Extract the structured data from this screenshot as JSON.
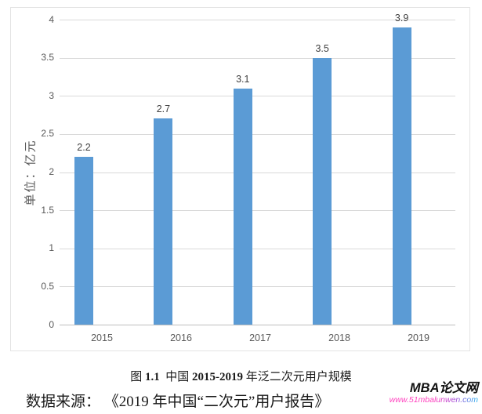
{
  "chart_data": {
    "type": "bar",
    "categories": [
      "2015",
      "2016",
      "2017",
      "2018",
      "2019"
    ],
    "values": [
      2.2,
      2.7,
      3.1,
      3.5,
      3.9
    ],
    "data_labels": [
      "2.2",
      "2.7",
      "3.1",
      "3.5",
      "3.9"
    ],
    "ylabel": "单位：亿元",
    "xlabel": "",
    "ylim": [
      0,
      4
    ],
    "yticks": [
      {
        "value": 4,
        "label": "4"
      },
      {
        "value": 3.5,
        "label": "3.5"
      },
      {
        "value": 3,
        "label": "3"
      },
      {
        "value": 2.5,
        "label": "2.5"
      },
      {
        "value": 2,
        "label": "2"
      },
      {
        "value": 1.5,
        "label": "1.5"
      },
      {
        "value": 1,
        "label": "1"
      },
      {
        "value": 0.5,
        "label": "0.5"
      },
      {
        "value": 0,
        "label": "0"
      }
    ],
    "grid": "horizontal",
    "legend_position": "none",
    "colors": {
      "bar": "#5B9BD5",
      "gridline": "#D9D9D9",
      "axis_line": "#BFBFBF",
      "tick_text": "#595959",
      "data_label_text": "#404040",
      "frame_border": "#E3E3E3"
    }
  },
  "caption": {
    "figure_word": "图 ",
    "figure_number": "1.1",
    "text_mid": "  中国 ",
    "year_range": "2015-2019",
    "text_end": " 年泛二次元用户规模"
  },
  "source_note": "数据来源： 《2019 年中国“二次元”用户报告》",
  "watermark": {
    "site_name": "MBA论文网",
    "site_url": "www.51mbalunwen.com",
    "url_color_start": "#FF3DBD",
    "url_color_mid": "#A04BD8",
    "url_color_end": "#25B2EF"
  }
}
